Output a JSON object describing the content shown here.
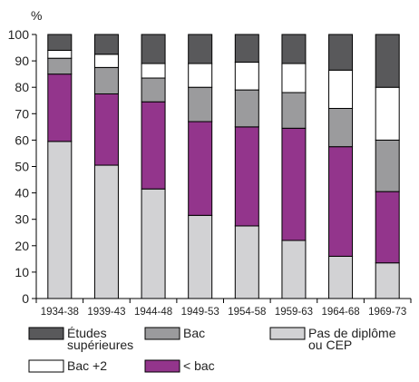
{
  "chart_data": {
    "type": "bar",
    "stacked": true,
    "y_unit": "%",
    "ylim": [
      0,
      100
    ],
    "yticks": [
      0,
      10,
      20,
      30,
      40,
      50,
      60,
      70,
      80,
      90,
      100
    ],
    "categories": [
      "1934-38",
      "1939-43",
      "1944-48",
      "1949-53",
      "1954-58",
      "1959-63",
      "1964-68",
      "1969-73"
    ],
    "series": [
      {
        "name": "Pas de diplôme ou CEP",
        "color": "#d2d2d4",
        "values": [
          59.5,
          50.5,
          41.5,
          31.5,
          27.5,
          22,
          16,
          13.5
        ]
      },
      {
        "name": "< bac",
        "color": "#93358c",
        "values": [
          25.5,
          27,
          33,
          35.5,
          37.5,
          42.5,
          41.5,
          27
        ]
      },
      {
        "name": "Bac",
        "color": "#9b9b9d",
        "values": [
          6,
          10,
          9,
          13,
          14,
          13.5,
          14.5,
          19.5
        ]
      },
      {
        "name": "Bac +2",
        "color": "#ffffff",
        "values": [
          3,
          5,
          5.5,
          9,
          10.5,
          11,
          14.5,
          20
        ]
      },
      {
        "name": "Études supérieures",
        "color": "#59595b",
        "values": [
          6,
          7.5,
          11,
          11,
          10.5,
          11,
          13.5,
          20
        ]
      }
    ],
    "legend": {
      "position": "bottom",
      "order": [
        "Études supérieures",
        "Bac",
        "Pas de diplôme ou CEP",
        "Bac +2",
        "< bac"
      ],
      "lines": {
        "Études supérieures": [
          "Études",
          "supérieures"
        ],
        "Bac": [
          "Bac"
        ],
        "Pas de diplôme ou CEP": [
          "Pas de diplôme",
          "ou CEP"
        ],
        "Bac +2": [
          "Bac +2"
        ],
        "< bac": [
          "< bac"
        ]
      }
    },
    "grid": false
  }
}
